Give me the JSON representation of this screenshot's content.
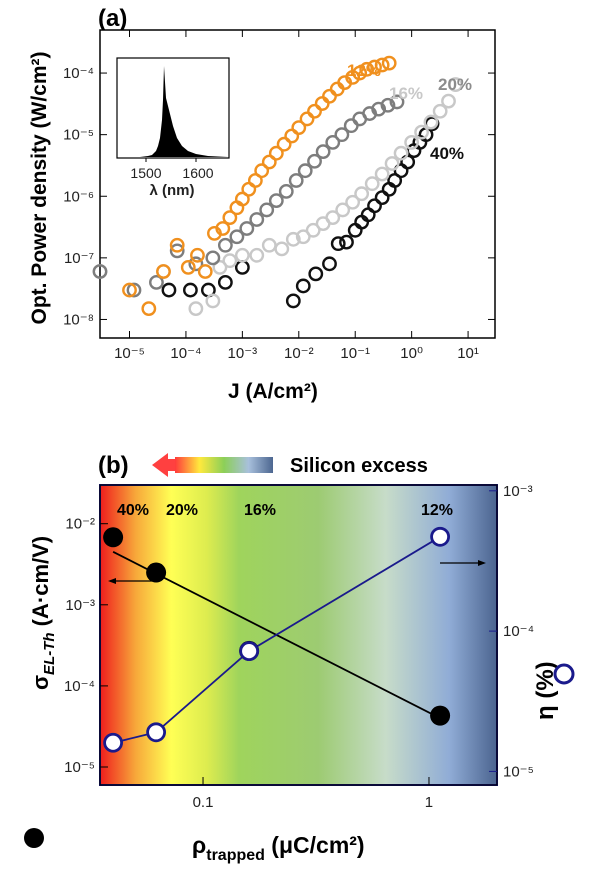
{
  "chart_data": [
    {
      "panel": "(a)",
      "type": "scatter",
      "xlabel": "J (A/cm²)",
      "ylabel": "Opt. Power density (W/cm²)",
      "x_scale": "log",
      "y_scale": "log",
      "xlim": [
        3e-06,
        30
      ],
      "ylim": [
        5e-09,
        0.0005
      ],
      "x_ticks": [
        "10⁻⁵",
        "10⁻⁴",
        "10⁻³",
        "10⁻²",
        "10⁻¹",
        "10⁰",
        "10¹"
      ],
      "y_ticks": [
        "10⁻⁸",
        "10⁻⁷",
        "10⁻⁶",
        "10⁻⁵",
        "10⁻⁴"
      ],
      "x_tick_values": [
        1e-05,
        0.0001,
        0.001,
        0.01,
        0.1,
        1,
        10
      ],
      "y_tick_values": [
        1e-08,
        1e-07,
        1e-06,
        1e-05,
        0.0001
      ],
      "series": [
        {
          "name": "12%",
          "color": "#f0901e",
          "x": [
            1e-05,
            2.2e-05,
            4e-05,
            7e-05,
            0.00011,
            0.00016,
            0.00022,
            0.00032,
            0.00045,
            0.0006,
            0.0008,
            0.001,
            0.0013,
            0.0017,
            0.0022,
            0.003,
            0.004,
            0.0055,
            0.0075,
            0.01,
            0.014,
            0.019,
            0.026,
            0.035,
            0.048,
            0.065,
            0.09,
            0.12,
            0.16,
            0.22,
            0.3,
            0.4
          ],
          "y": [
            3e-08,
            1.5e-08,
            6e-08,
            1.6e-07,
            7e-08,
            1.1e-07,
            6e-08,
            2.5e-07,
            3e-07,
            4.5e-07,
            6.5e-07,
            9e-07,
            1.3e-06,
            1.8e-06,
            2.6e-06,
            3.6e-06,
            5e-06,
            7e-06,
            9.5e-06,
            1.3e-05,
            1.8e-05,
            2.4e-05,
            3.2e-05,
            4.2e-05,
            5.5e-05,
            7e-05,
            8.5e-05,
            0.0001,
            0.000115,
            0.000125,
            0.000135,
            0.000145
          ]
        },
        {
          "name": "16%",
          "color": "#7d7d7d",
          "x": [
            3e-06,
            1.2e-05,
            3e-05,
            7e-05,
            0.00015,
            0.0003,
            0.0005,
            0.0008,
            0.0012,
            0.0018,
            0.0027,
            0.004,
            0.006,
            0.009,
            0.013,
            0.019,
            0.027,
            0.04,
            0.058,
            0.085,
            0.12,
            0.18,
            0.26,
            0.38,
            0.55
          ],
          "y": [
            6e-08,
            3e-08,
            4e-08,
            1.3e-07,
            8e-08,
            1e-07,
            1.6e-07,
            2.2e-07,
            3e-07,
            4.2e-07,
            6e-07,
            8.5e-07,
            1.2e-06,
            1.8e-06,
            2.6e-06,
            3.7e-06,
            5.3e-06,
            7.5e-06,
            1e-05,
            1.4e-05,
            1.8e-05,
            2.2e-05,
            2.6e-05,
            3e-05,
            3.4e-05
          ]
        },
        {
          "name": "20%",
          "color": "#c8c8c8",
          "x": [
            3e-06,
            4e-05,
            0.00015,
            0.0003,
            0.0004,
            0.0006,
            0.001,
            0.0018,
            0.003,
            0.005,
            0.008,
            0.012,
            0.018,
            0.027,
            0.04,
            0.06,
            0.09,
            0.13,
            0.2,
            0.3,
            0.45,
            0.65,
            1,
            1.5,
            2.2,
            3.2,
            4.5,
            6
          ],
          "y": [
            6e-08,
            6e-08,
            1.5e-08,
            2e-08,
            7e-08,
            9e-08,
            1.1e-07,
            1.1e-07,
            1.6e-07,
            1.4e-07,
            2e-07,
            2.2e-07,
            2.8e-07,
            3.6e-07,
            4.5e-07,
            6e-07,
            8e-07,
            1.1e-06,
            1.6e-06,
            2.3e-06,
            3.4e-06,
            5e-06,
            7.5e-06,
            1.1e-05,
            1.6e-05,
            2.4e-05,
            3.5e-05,
            6.5e-05
          ]
        },
        {
          "name": "40%",
          "color": "#111111",
          "x": [
            5e-05,
            0.00012,
            0.00025,
            0.0005,
            0.001,
            0.008,
            0.012,
            0.02,
            0.035,
            0.05,
            0.07,
            0.1,
            0.13,
            0.17,
            0.22,
            0.3,
            0.4,
            0.5,
            0.65,
            0.85,
            1.1,
            1.4,
            1.8,
            2.3
          ],
          "y": [
            3e-08,
            3e-08,
            3e-08,
            4e-08,
            7e-08,
            2e-08,
            3.5e-08,
            5.5e-08,
            8e-08,
            1.7e-07,
            1.8e-07,
            2.8e-07,
            3.8e-07,
            5e-07,
            7e-07,
            9.5e-07,
            1.3e-06,
            1.8e-06,
            2.6e-06,
            3.6e-06,
            5.5e-06,
            7.5e-06,
            1e-05,
            1.5e-05
          ]
        }
      ],
      "inset": {
        "type": "area",
        "xlabel": "λ (nm)",
        "x_ticks": [
          "1500",
          "1600"
        ],
        "xlim": [
          1440,
          1660
        ]
      }
    },
    {
      "panel": "(b)",
      "type": "line",
      "xlabel_main": "ρ",
      "xlabel_sub": "trapped",
      "xlabel_unit": " (μC/cm²)",
      "ylabel_left_main": "σ",
      "ylabel_left_sub": "EL-Th",
      "ylabel_left_unit": " (A·cm/V)",
      "ylabel_right": "η (%)",
      "x_scale": "log",
      "xlim": [
        0.035,
        2
      ],
      "x_ticks": [
        "0.1",
        "1"
      ],
      "x_tick_values": [
        0.1,
        1
      ],
      "y_left_scale": "log",
      "y_left_lim": [
        6e-06,
        0.03
      ],
      "y_left_ticks": [
        "10⁻⁵",
        "10⁻⁴",
        "10⁻³",
        "10⁻²"
      ],
      "y_left_tick_values": [
        1e-05,
        0.0001,
        0.001,
        0.01
      ],
      "y_right_scale": "log",
      "y_right_lim": [
        8e-06,
        0.0011
      ],
      "y_right_ticks": [
        "10⁻⁵",
        "10⁻⁴",
        "10⁻³"
      ],
      "y_right_tick_values": [
        1e-05,
        0.0001,
        0.001
      ],
      "categories": [
        "40%",
        "20%",
        "16%",
        "12%"
      ],
      "series": [
        {
          "name": "σEL-Th",
          "axis": "left",
          "marker": "filled-circle",
          "color": "#000000",
          "x": [
            0.04,
            0.062,
            0.16,
            1.12
          ],
          "y": [
            0.0068,
            0.0025,
            0.00027,
            4.3e-05
          ],
          "fit_line": {
            "x": [
              0.04,
              1.12
            ],
            "y": [
              0.0045,
              4e-05
            ]
          }
        },
        {
          "name": "η",
          "axis": "right",
          "marker": "open-circle",
          "color": "#1a1a8c",
          "x": [
            0.04,
            0.062,
            0.16,
            1.12
          ],
          "y": [
            1.6e-05,
            1.9e-05,
            7.2e-05,
            0.00047
          ]
        }
      ],
      "gradient_bar_label": "Silicon excess",
      "background_gradient": [
        "#ef1d1d",
        "#fbe62b",
        "#ffff55",
        "#9fd45c",
        "#7fc456",
        "#bcd4d4",
        "#8aaad8",
        "#4a6490"
      ]
    }
  ]
}
